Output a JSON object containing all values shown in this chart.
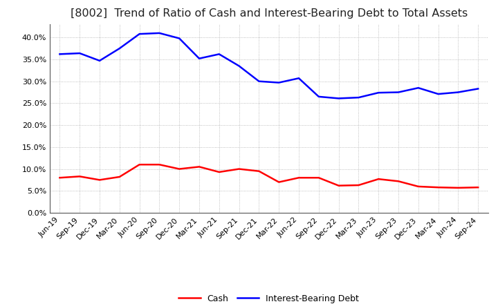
{
  "title": "[8002]  Trend of Ratio of Cash and Interest-Bearing Debt to Total Assets",
  "labels": [
    "Jun-19",
    "Sep-19",
    "Dec-19",
    "Mar-20",
    "Jun-20",
    "Sep-20",
    "Dec-20",
    "Mar-21",
    "Jun-21",
    "Sep-21",
    "Dec-21",
    "Mar-22",
    "Jun-22",
    "Sep-22",
    "Dec-22",
    "Mar-23",
    "Jun-23",
    "Sep-23",
    "Dec-23",
    "Mar-24",
    "Jun-24",
    "Sep-24"
  ],
  "cash": [
    0.08,
    0.083,
    0.075,
    0.082,
    0.11,
    0.11,
    0.1,
    0.105,
    0.093,
    0.1,
    0.095,
    0.07,
    0.08,
    0.08,
    0.062,
    0.063,
    0.077,
    0.072,
    0.06,
    0.058,
    0.057,
    0.058
  ],
  "ibd": [
    0.362,
    0.364,
    0.347,
    0.375,
    0.408,
    0.41,
    0.398,
    0.352,
    0.362,
    0.335,
    0.3,
    0.297,
    0.307,
    0.265,
    0.261,
    0.263,
    0.274,
    0.275,
    0.285,
    0.271,
    0.275,
    0.283
  ],
  "cash_color": "#ff0000",
  "ibd_color": "#0000ff",
  "background_color": "#ffffff",
  "plot_background_color": "#ffffff",
  "grid_color": "#aaaaaa",
  "ylim": [
    0.0,
    0.43
  ],
  "yticks": [
    0.0,
    0.05,
    0.1,
    0.15,
    0.2,
    0.25,
    0.3,
    0.35,
    0.4
  ],
  "legend_cash": "Cash",
  "legend_ibd": "Interest-Bearing Debt",
  "title_fontsize": 11.5,
  "tick_fontsize": 8,
  "legend_fontsize": 9,
  "line_width": 1.8
}
